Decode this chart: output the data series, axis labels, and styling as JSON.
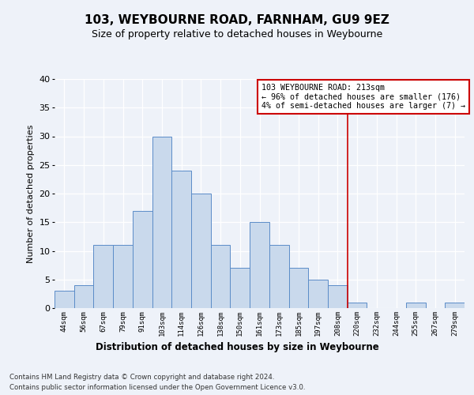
{
  "title1": "103, WEYBOURNE ROAD, FARNHAM, GU9 9EZ",
  "title2": "Size of property relative to detached houses in Weybourne",
  "xlabel": "Distribution of detached houses by size in Weybourne",
  "ylabel": "Number of detached properties",
  "bar_labels": [
    "44sqm",
    "56sqm",
    "67sqm",
    "79sqm",
    "91sqm",
    "103sqm",
    "114sqm",
    "126sqm",
    "138sqm",
    "150sqm",
    "161sqm",
    "173sqm",
    "185sqm",
    "197sqm",
    "208sqm",
    "220sqm",
    "232sqm",
    "244sqm",
    "255sqm",
    "267sqm",
    "279sqm"
  ],
  "bar_values": [
    3,
    4,
    11,
    11,
    17,
    30,
    24,
    20,
    11,
    7,
    15,
    11,
    7,
    5,
    4,
    1,
    0,
    0,
    1,
    0,
    1
  ],
  "bar_color": "#c9d9ec",
  "bar_edge_color": "#5b8cc8",
  "ylim": [
    0,
    40
  ],
  "yticks": [
    0,
    5,
    10,
    15,
    20,
    25,
    30,
    35,
    40
  ],
  "red_line_index": 14.5,
  "annotation_title": "103 WEYBOURNE ROAD: 213sqm",
  "annotation_line1": "← 96% of detached houses are smaller (176)",
  "annotation_line2": "4% of semi-detached houses are larger (7) →",
  "footer1": "Contains HM Land Registry data © Crown copyright and database right 2024.",
  "footer2": "Contains public sector information licensed under the Open Government Licence v3.0.",
  "bg_color": "#eef2f9",
  "annotation_box_color": "#ffffff",
  "annotation_box_edge": "#cc0000",
  "red_line_color": "#cc0000"
}
